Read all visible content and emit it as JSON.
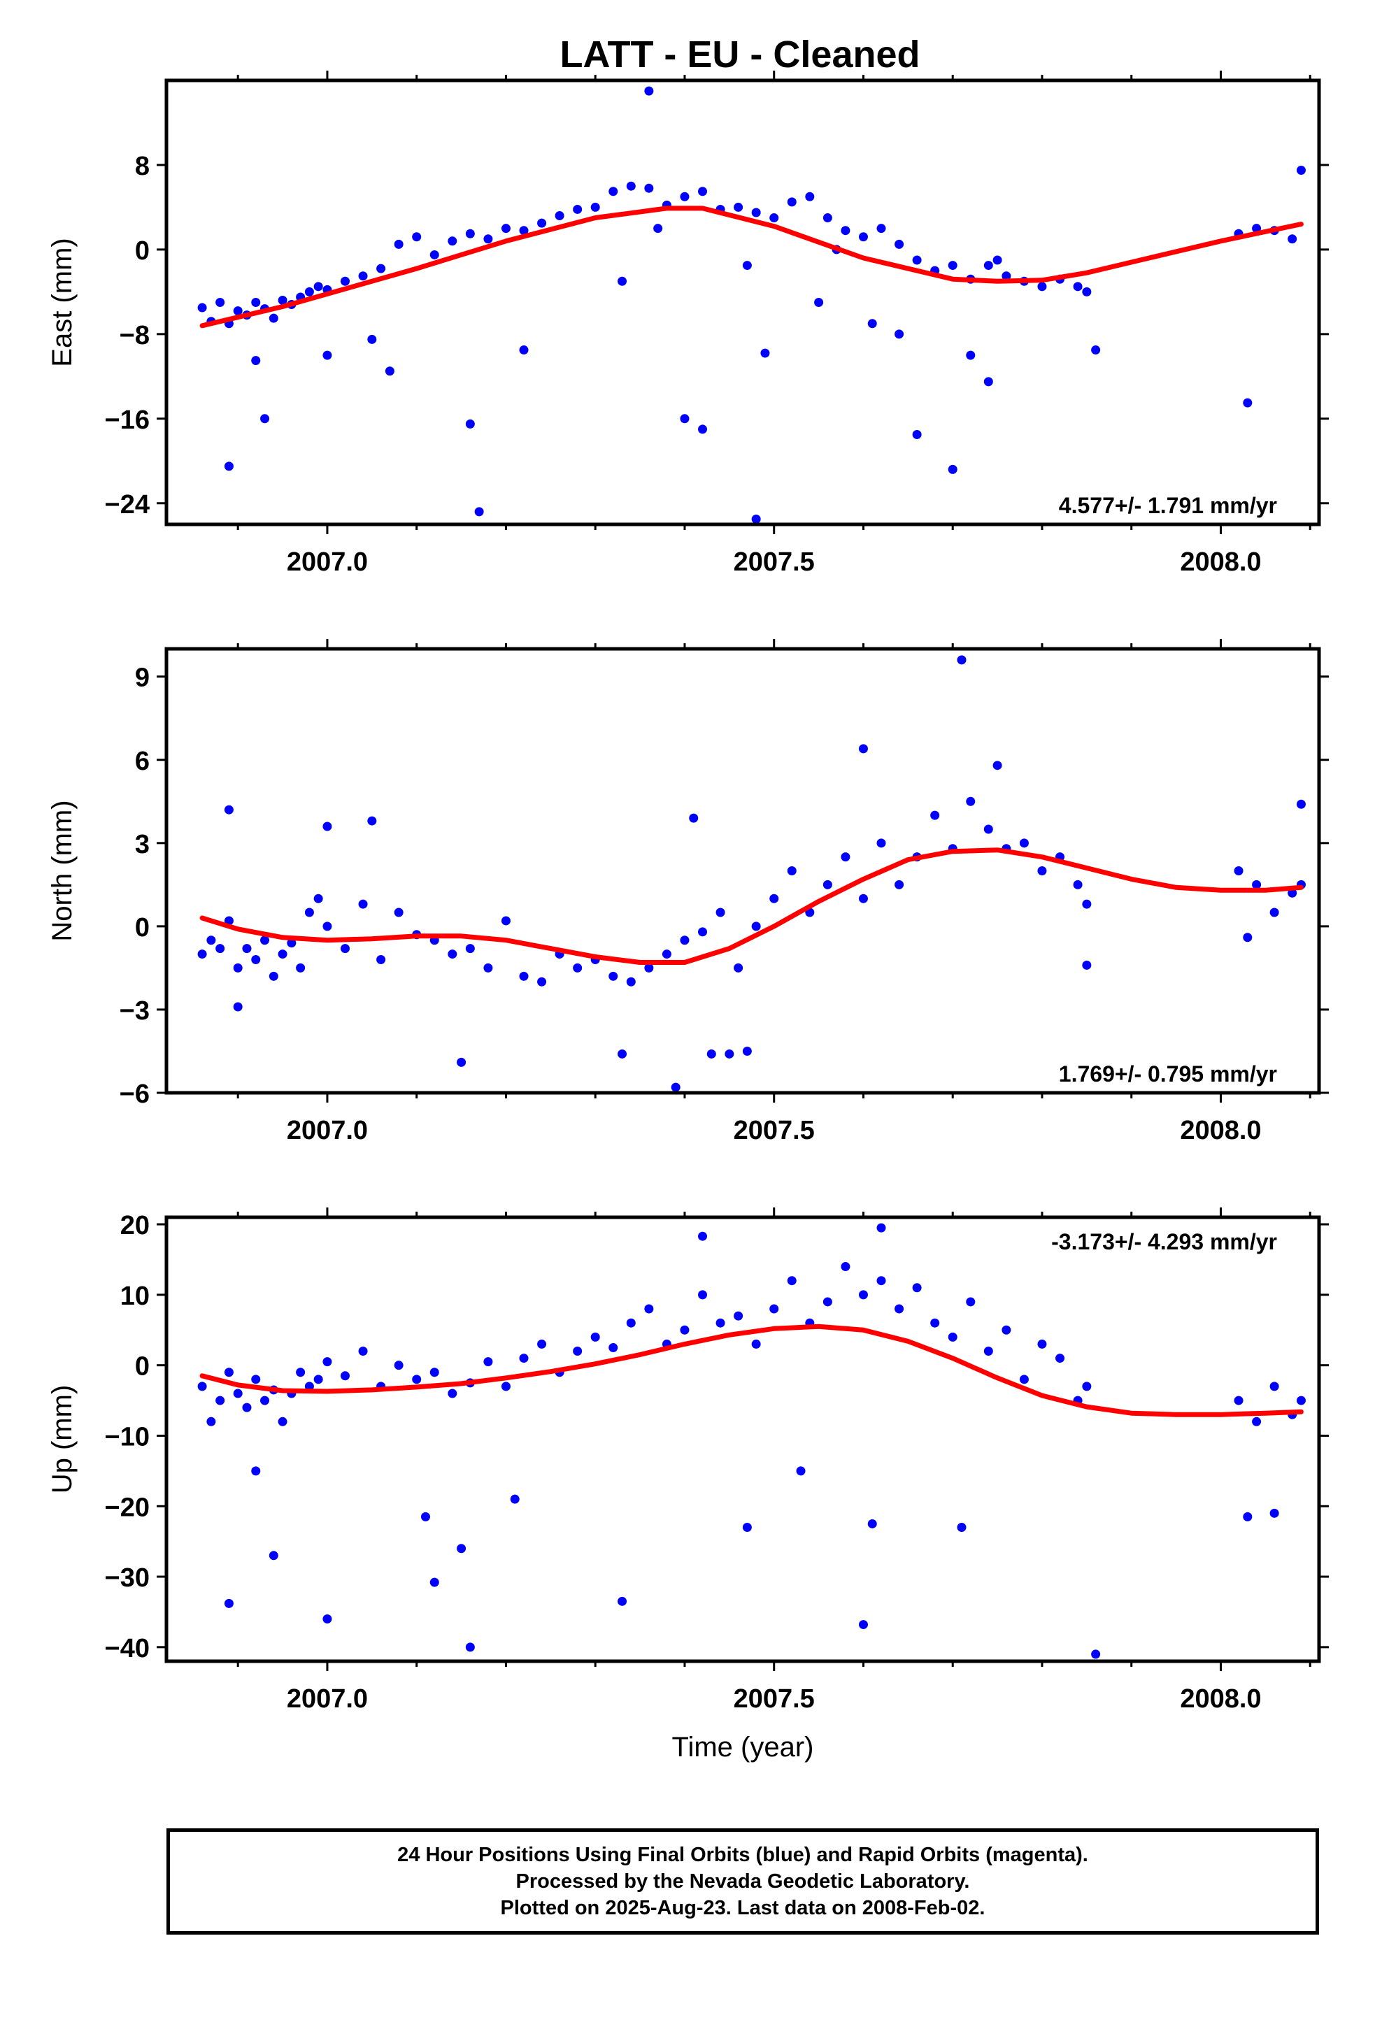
{
  "page": {
    "title": "LATT  - EU - Cleaned"
  },
  "footer": {
    "lines": [
      "24 Hour Positions Using Final Orbits (blue) and Rapid Orbits (magenta).",
      "Processed by the Nevada Geodetic Laboratory.",
      "Plotted on 2025-Aug-23. Last data on 2008-Feb-02."
    ]
  },
  "colors": {
    "final_orbits": "#0000ff",
    "rapid_orbits": "#ff00ff",
    "trend_line": "#ff0000",
    "axes": "#000000"
  },
  "chart_data": [
    {
      "type": "scatter",
      "component": "east",
      "ylabel": "East (mm)",
      "xlabel": "",
      "xlim": [
        2006.82,
        2008.11
      ],
      "ylim": [
        -26,
        16
      ],
      "xticks": [
        2007.0,
        2007.5,
        2008.0
      ],
      "xtick_labels": [
        "2007.0",
        "2007.5",
        "2008.0"
      ],
      "yticks": [
        8,
        0,
        -8,
        -16,
        -24
      ],
      "ytick_labels": [
        "8",
        "0",
        "−8",
        "−16",
        "−24"
      ],
      "rate_label": "4.577+/- 1.791 mm/yr",
      "rate_label_position": "bottom-right",
      "series": [
        {
          "name": "Final Orbits",
          "color": "#0000ff",
          "x": [
            2006.86,
            2006.87,
            2006.88,
            2006.89,
            2006.9,
            2006.91,
            2006.92,
            2006.93,
            2006.94,
            2006.95,
            2006.96,
            2006.97,
            2006.98,
            2006.99,
            2007.0,
            2007.02,
            2007.04,
            2007.06,
            2007.08,
            2007.1,
            2007.12,
            2007.14,
            2007.16,
            2007.18,
            2007.2,
            2007.22,
            2007.24,
            2007.26,
            2007.28,
            2007.3,
            2007.32,
            2007.34,
            2007.36,
            2007.38,
            2007.4,
            2007.42,
            2007.44,
            2007.46,
            2007.48,
            2007.5,
            2007.52,
            2007.54,
            2007.56,
            2007.58,
            2007.6,
            2007.62,
            2007.64,
            2007.66,
            2007.68,
            2007.7,
            2007.72,
            2007.74,
            2007.76,
            2007.78,
            2007.8,
            2007.82,
            2007.84,
            2007.85,
            2008.02,
            2008.04,
            2008.06,
            2008.08,
            2008.09,
            2006.89,
            2006.93,
            2007.0,
            2007.07,
            2007.16,
            2007.22,
            2007.33,
            2007.36,
            2007.4,
            2007.42,
            2007.48,
            2007.49,
            2007.55,
            2007.61,
            2007.66,
            2007.7,
            2007.72,
            2007.74,
            2007.86,
            2008.03,
            2007.05,
            2007.17,
            2007.37,
            2007.57,
            2007.75,
            2007.64,
            2007.47,
            2006.92
          ],
          "y": [
            -5.5,
            -6.8,
            -5.0,
            -7.0,
            -5.8,
            -6.2,
            -5.0,
            -5.6,
            -6.5,
            -4.8,
            -5.2,
            -4.5,
            -4.0,
            -3.5,
            -3.8,
            -3.0,
            -2.5,
            -1.8,
            0.5,
            1.2,
            -0.5,
            0.8,
            1.5,
            1.0,
            2.0,
            1.8,
            2.5,
            3.2,
            3.8,
            4.0,
            5.5,
            6.0,
            5.8,
            4.2,
            5.0,
            5.5,
            3.8,
            4.0,
            3.5,
            3.0,
            4.5,
            5.0,
            3.0,
            1.8,
            1.2,
            2.0,
            0.5,
            -1.0,
            -2.0,
            -1.5,
            -2.8,
            -1.5,
            -2.5,
            -3.0,
            -3.5,
            -2.8,
            -3.5,
            -4.0,
            1.5,
            2.0,
            1.8,
            1.0,
            7.5,
            -20.5,
            -16.0,
            -10.0,
            -11.5,
            -16.5,
            -9.5,
            -3.0,
            15.0,
            -16.0,
            -17.0,
            -25.5,
            -9.8,
            -5.0,
            -7.0,
            -17.5,
            -20.8,
            -10.0,
            -12.5,
            -9.5,
            -14.5,
            -8.5,
            -24.8,
            2.0,
            0.0,
            -1.0,
            -8.0,
            -1.5,
            -10.5
          ]
        },
        {
          "name": "Trend",
          "color": "#ff0000",
          "x": [
            2006.86,
            2006.95,
            2007.0,
            2007.1,
            2007.2,
            2007.3,
            2007.38,
            2007.42,
            2007.5,
            2007.6,
            2007.7,
            2007.75,
            2007.8,
            2007.85,
            2007.9,
            2008.0,
            2008.09
          ],
          "y": [
            -7.2,
            -5.4,
            -4.2,
            -1.8,
            0.8,
            3.0,
            3.9,
            3.9,
            2.2,
            -0.8,
            -2.8,
            -3.0,
            -2.9,
            -2.2,
            -1.2,
            0.8,
            2.4
          ]
        }
      ]
    },
    {
      "type": "scatter",
      "component": "north",
      "ylabel": "North (mm)",
      "xlabel": "",
      "xlim": [
        2006.82,
        2008.11
      ],
      "ylim": [
        -6,
        10
      ],
      "xticks": [
        2007.0,
        2007.5,
        2008.0
      ],
      "xtick_labels": [
        "2007.0",
        "2007.5",
        "2008.0"
      ],
      "yticks": [
        9,
        6,
        3,
        0,
        -3,
        -6
      ],
      "ytick_labels": [
        "9",
        "6",
        "3",
        "0",
        "−3",
        "−6"
      ],
      "rate_label": "1.769+/- 0.795 mm/yr",
      "rate_label_position": "bottom-right",
      "series": [
        {
          "name": "Final Orbits",
          "color": "#0000ff",
          "x": [
            2006.86,
            2006.87,
            2006.88,
            2006.89,
            2006.9,
            2006.91,
            2006.92,
            2006.93,
            2006.94,
            2006.95,
            2006.96,
            2006.97,
            2006.98,
            2006.99,
            2007.0,
            2007.02,
            2007.04,
            2007.06,
            2007.08,
            2007.1,
            2007.12,
            2007.14,
            2007.16,
            2007.18,
            2007.2,
            2007.22,
            2007.24,
            2007.26,
            2007.28,
            2007.3,
            2007.32,
            2007.34,
            2007.36,
            2007.38,
            2007.4,
            2007.42,
            2007.44,
            2007.46,
            2007.48,
            2007.5,
            2007.52,
            2007.54,
            2007.56,
            2007.58,
            2007.6,
            2007.62,
            2007.64,
            2007.66,
            2007.68,
            2007.7,
            2007.72,
            2007.74,
            2007.76,
            2007.78,
            2007.8,
            2007.82,
            2007.84,
            2007.85,
            2008.02,
            2008.04,
            2008.06,
            2008.08,
            2008.09,
            2006.89,
            2006.9,
            2007.0,
            2007.05,
            2007.15,
            2007.33,
            2007.39,
            2007.41,
            2007.43,
            2007.45,
            2007.47,
            2007.6,
            2007.71,
            2007.75,
            2007.85,
            2008.09,
            2008.03
          ],
          "y": [
            -1.0,
            -0.5,
            -0.8,
            0.2,
            -1.5,
            -0.8,
            -1.2,
            -0.5,
            -1.8,
            -1.0,
            -0.6,
            -1.5,
            0.5,
            1.0,
            0.0,
            -0.8,
            0.8,
            -1.2,
            0.5,
            -0.3,
            -0.5,
            -1.0,
            -0.8,
            -1.5,
            0.2,
            -1.8,
            -2.0,
            -1.0,
            -1.5,
            -1.2,
            -1.8,
            -2.0,
            -1.5,
            -1.0,
            -0.5,
            -0.2,
            0.5,
            -1.5,
            0.0,
            1.0,
            2.0,
            0.5,
            1.5,
            2.5,
            1.0,
            3.0,
            1.5,
            2.5,
            4.0,
            2.8,
            4.5,
            3.5,
            2.8,
            3.0,
            2.0,
            2.5,
            1.5,
            0.8,
            2.0,
            1.5,
            0.5,
            1.2,
            1.5,
            4.2,
            -2.9,
            3.6,
            3.8,
            -4.9,
            -4.6,
            -5.8,
            3.9,
            -4.6,
            -4.6,
            -4.5,
            6.4,
            9.6,
            5.8,
            -1.4,
            4.4,
            -0.4
          ]
        },
        {
          "name": "Trend",
          "color": "#ff0000",
          "x": [
            2006.86,
            2006.9,
            2006.95,
            2007.0,
            2007.05,
            2007.1,
            2007.15,
            2007.2,
            2007.25,
            2007.3,
            2007.35,
            2007.4,
            2007.45,
            2007.5,
            2007.55,
            2007.6,
            2007.65,
            2007.7,
            2007.75,
            2007.8,
            2007.85,
            2007.9,
            2007.95,
            2008.0,
            2008.05,
            2008.09
          ],
          "y": [
            0.3,
            -0.1,
            -0.4,
            -0.5,
            -0.45,
            -0.35,
            -0.35,
            -0.5,
            -0.8,
            -1.1,
            -1.3,
            -1.3,
            -0.8,
            0.0,
            0.9,
            1.7,
            2.4,
            2.7,
            2.75,
            2.5,
            2.1,
            1.7,
            1.4,
            1.3,
            1.3,
            1.4
          ]
        }
      ]
    },
    {
      "type": "scatter",
      "component": "up",
      "ylabel": "Up (mm)",
      "xlabel": "Time (year)",
      "xlim": [
        2006.82,
        2008.11
      ],
      "ylim": [
        -42,
        21
      ],
      "xticks": [
        2007.0,
        2007.5,
        2008.0
      ],
      "xtick_labels": [
        "2007.0",
        "2007.5",
        "2008.0"
      ],
      "yticks": [
        20,
        10,
        0,
        -10,
        -20,
        -30,
        -40
      ],
      "ytick_labels": [
        "20",
        "10",
        "0",
        "−10",
        "−20",
        "−30",
        "−40"
      ],
      "rate_label": "-3.173+/- 4.293 mm/yr",
      "rate_label_position": "top-right",
      "series": [
        {
          "name": "Final Orbits",
          "color": "#0000ff",
          "x": [
            2006.86,
            2006.87,
            2006.88,
            2006.89,
            2006.9,
            2006.91,
            2006.92,
            2006.93,
            2006.94,
            2006.95,
            2006.96,
            2006.97,
            2006.98,
            2006.99,
            2007.0,
            2007.02,
            2007.04,
            2007.06,
            2007.08,
            2007.1,
            2007.12,
            2007.14,
            2007.16,
            2007.18,
            2007.2,
            2007.22,
            2007.24,
            2007.26,
            2007.28,
            2007.3,
            2007.32,
            2007.34,
            2007.36,
            2007.38,
            2007.4,
            2007.42,
            2007.44,
            2007.46,
            2007.48,
            2007.5,
            2007.52,
            2007.54,
            2007.56,
            2007.58,
            2007.6,
            2007.62,
            2007.64,
            2007.66,
            2007.68,
            2007.7,
            2007.72,
            2007.74,
            2007.76,
            2007.78,
            2007.8,
            2007.82,
            2007.84,
            2007.85,
            2008.02,
            2008.04,
            2008.06,
            2008.08,
            2008.09,
            2006.89,
            2006.94,
            2007.0,
            2007.12,
            2007.16,
            2007.33,
            2007.42,
            2007.47,
            2007.53,
            2007.6,
            2007.61,
            2007.62,
            2007.71,
            2007.86,
            2008.03,
            2008.06,
            2007.11,
            2007.21,
            2006.92,
            2007.15
          ],
          "y": [
            -3.0,
            -8.0,
            -5.0,
            -1.0,
            -4.0,
            -6.0,
            -2.0,
            -5.0,
            -3.5,
            -8.0,
            -4.0,
            -1.0,
            -3.0,
            -2.0,
            0.5,
            -1.5,
            2.0,
            -3.0,
            0.0,
            -2.0,
            -1.0,
            -4.0,
            -2.5,
            0.5,
            -3.0,
            1.0,
            3.0,
            -1.0,
            2.0,
            4.0,
            2.5,
            6.0,
            8.0,
            3.0,
            5.0,
            10.0,
            6.0,
            7.0,
            3.0,
            8.0,
            12.0,
            6.0,
            9.0,
            14.0,
            10.0,
            12.0,
            8.0,
            11.0,
            6.0,
            4.0,
            9.0,
            2.0,
            5.0,
            -2.0,
            3.0,
            1.0,
            -5.0,
            -3.0,
            -5.0,
            -8.0,
            -3.0,
            -7.0,
            -5.0,
            -33.8,
            -27.0,
            -36.0,
            -30.8,
            -40.0,
            -33.5,
            18.3,
            -23.0,
            -15.0,
            -36.8,
            -22.5,
            19.5,
            -23.0,
            -41.0,
            -21.5,
            -21.0,
            -21.5,
            -19.0,
            -15.0,
            -26.0
          ]
        },
        {
          "name": "Trend",
          "color": "#ff0000",
          "x": [
            2006.86,
            2006.9,
            2006.95,
            2007.0,
            2007.05,
            2007.1,
            2007.15,
            2007.2,
            2007.25,
            2007.3,
            2007.35,
            2007.4,
            2007.45,
            2007.5,
            2007.55,
            2007.6,
            2007.65,
            2007.7,
            2007.75,
            2007.8,
            2007.85,
            2007.9,
            2007.95,
            2008.0,
            2008.05,
            2008.09
          ],
          "y": [
            -1.5,
            -2.8,
            -3.6,
            -3.7,
            -3.5,
            -3.1,
            -2.6,
            -1.8,
            -0.9,
            0.2,
            1.5,
            3.0,
            4.3,
            5.2,
            5.5,
            5.0,
            3.4,
            1.0,
            -1.8,
            -4.3,
            -5.9,
            -6.8,
            -7.0,
            -7.0,
            -6.8,
            -6.6
          ]
        }
      ]
    }
  ]
}
